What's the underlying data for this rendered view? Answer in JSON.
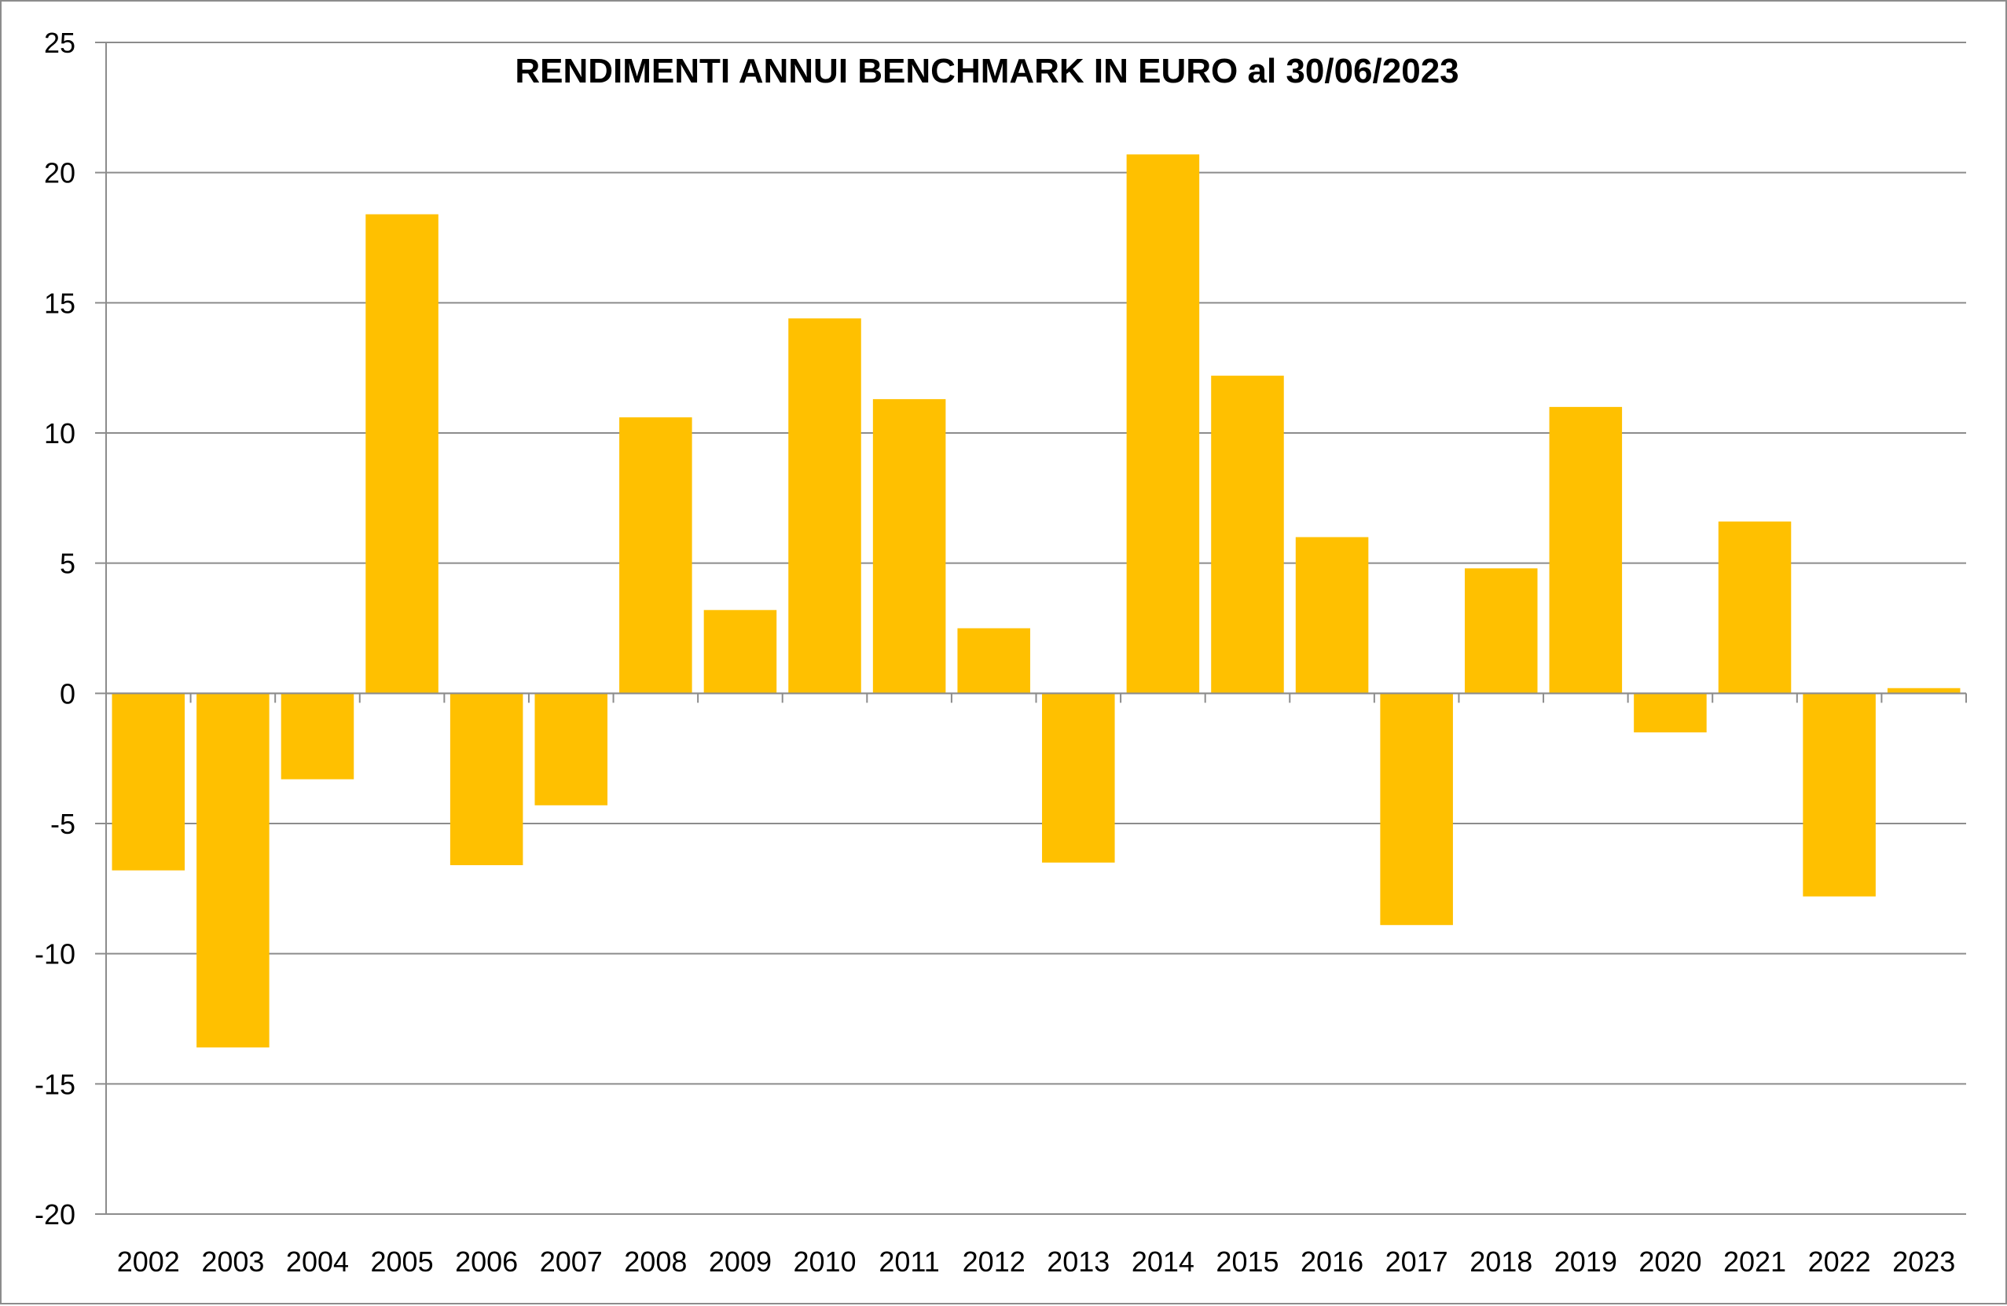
{
  "chart_data": {
    "type": "bar",
    "title": "RENDIMENTI ANNUI BENCHMARK IN EURO al 30/06/2023",
    "xlabel": "",
    "ylabel": "",
    "categories": [
      "2002",
      "2003",
      "2004",
      "2005",
      "2006",
      "2007",
      "2008",
      "2009",
      "2010",
      "2011",
      "2012",
      "2013",
      "2014",
      "2015",
      "2016",
      "2017",
      "2018",
      "2019",
      "2020",
      "2021",
      "2022",
      "2023"
    ],
    "values": [
      -6.8,
      -13.6,
      -3.3,
      18.4,
      -6.6,
      -4.3,
      10.6,
      3.2,
      14.4,
      11.3,
      2.5,
      -6.5,
      20.7,
      12.2,
      6.0,
      -8.9,
      4.8,
      11.0,
      -1.5,
      6.6,
      -7.8,
      0.2
    ],
    "ylim": [
      -20,
      25
    ],
    "yticks": [
      25,
      20,
      15,
      10,
      5,
      0,
      -5,
      -10,
      -15,
      -20
    ],
    "grid": true,
    "legend": "none",
    "bar_color": "#FFC000",
    "grid_color": "#8c8c8c"
  }
}
